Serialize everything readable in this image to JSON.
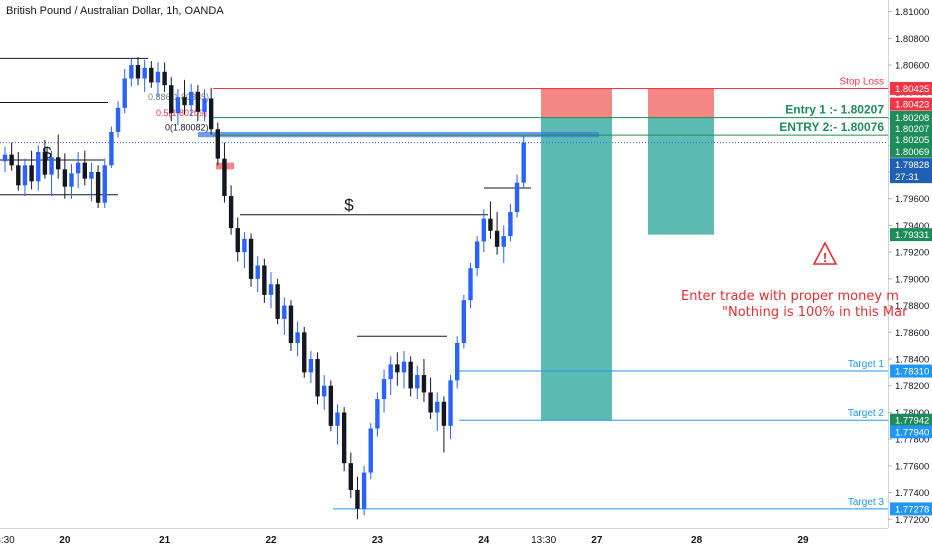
{
  "header": {
    "title": "British Pound / Australian Dollar, 1h, OANDA"
  },
  "chart_data": {
    "type": "candlestick",
    "symbol": "British Pound / Australian Dollar",
    "timeframe": "1h",
    "ylim": [
      1.7715,
      1.8105
    ],
    "price_ticks": [
      "1.81000",
      "1.80800",
      "1.80600",
      "1.80400",
      "1.80200",
      "1.80000",
      "1.79800",
      "1.79600",
      "1.79400",
      "1.79200",
      "1.79000",
      "1.78800",
      "1.78600",
      "1.78400",
      "1.78200",
      "1.78000",
      "1.77800",
      "1.77600",
      "1.77400",
      "1.77200"
    ],
    "time_labels": [
      {
        "label": "3:30",
        "idx": 0
      },
      {
        "label": "20",
        "idx": 9
      },
      {
        "label": "21",
        "idx": 24
      },
      {
        "label": "22",
        "idx": 40
      },
      {
        "label": "23",
        "idx": 56
      },
      {
        "label": "24",
        "idx": 72
      },
      {
        "label": "13:30",
        "idx": 81
      },
      {
        "label": "27",
        "idx": 89
      },
      {
        "label": "28",
        "idx": 104
      },
      {
        "label": "29",
        "idx": 120
      }
    ],
    "candles": [
      [
        1.7988,
        1.7999,
        1.798,
        1.7993
      ],
      [
        1.7993,
        1.8002,
        1.7981,
        1.7985
      ],
      [
        1.7985,
        1.7995,
        1.7966,
        1.797
      ],
      [
        1.797,
        1.799,
        1.7962,
        1.7985
      ],
      [
        1.7985,
        1.7996,
        1.7967,
        1.7973
      ],
      [
        1.7973,
        1.8,
        1.7966,
        1.7995
      ],
      [
        1.7995,
        1.8004,
        1.7975,
        1.7978
      ],
      [
        1.7978,
        1.7996,
        1.7962,
        1.7991
      ],
      [
        1.7991,
        1.8008,
        1.7975,
        1.7982
      ],
      [
        1.7982,
        1.7994,
        1.796,
        1.7969
      ],
      [
        1.7969,
        1.7986,
        1.796,
        1.7979
      ],
      [
        1.7979,
        1.7995,
        1.7968,
        1.7987
      ],
      [
        1.7987,
        1.7996,
        1.797,
        1.7975
      ],
      [
        1.7975,
        1.7987,
        1.7958,
        1.798
      ],
      [
        1.798,
        1.7985,
        1.7953,
        1.7957
      ],
      [
        1.7957,
        1.799,
        1.7953,
        1.7985
      ],
      [
        1.7985,
        1.8014,
        1.7983,
        1.801
      ],
      [
        1.801,
        1.8033,
        1.8006,
        1.8028
      ],
      [
        1.8028,
        1.8057,
        1.8024,
        1.805
      ],
      [
        1.805,
        1.8065,
        1.8044,
        1.806
      ],
      [
        1.806,
        1.8066,
        1.8045,
        1.805
      ],
      [
        1.805,
        1.8064,
        1.804,
        1.8058
      ],
      [
        1.8058,
        1.8063,
        1.8043,
        1.8047
      ],
      [
        1.8047,
        1.8062,
        1.8036,
        1.8055
      ],
      [
        1.8055,
        1.8062,
        1.804,
        1.8045
      ],
      [
        1.8045,
        1.8051,
        1.8018,
        1.8024
      ],
      [
        1.8024,
        1.8042,
        1.8015,
        1.8036
      ],
      [
        1.8036,
        1.8049,
        1.8023,
        1.803
      ],
      [
        1.803,
        1.8046,
        1.8022,
        1.804
      ],
      [
        1.804,
        1.8045,
        1.8018,
        1.8025
      ],
      [
        1.8025,
        1.8042,
        1.8018,
        1.8035
      ],
      [
        1.8035,
        1.8043,
        1.8008,
        1.8012
      ],
      [
        1.8012,
        1.8017,
        1.7985,
        1.799
      ],
      [
        1.799,
        1.8002,
        1.7957,
        1.7962
      ],
      [
        1.7962,
        1.797,
        1.7933,
        1.7938
      ],
      [
        1.7938,
        1.7946,
        1.7913,
        1.792
      ],
      [
        1.792,
        1.7935,
        1.7908,
        1.793
      ],
      [
        1.793,
        1.7934,
        1.7894,
        1.79
      ],
      [
        1.79,
        1.7917,
        1.789,
        1.791
      ],
      [
        1.791,
        1.7915,
        1.7882,
        1.7888
      ],
      [
        1.7888,
        1.7905,
        1.7878,
        1.7896
      ],
      [
        1.7896,
        1.79,
        1.7866,
        1.787
      ],
      [
        1.787,
        1.7886,
        1.7858,
        1.788
      ],
      [
        1.788,
        1.7884,
        1.7846,
        1.7852
      ],
      [
        1.7852,
        1.7868,
        1.7842,
        1.786
      ],
      [
        1.786,
        1.7864,
        1.7826,
        1.783
      ],
      [
        1.783,
        1.7846,
        1.7822,
        1.784
      ],
      [
        1.784,
        1.7845,
        1.7806,
        1.7812
      ],
      [
        1.7812,
        1.7828,
        1.7802,
        1.782
      ],
      [
        1.782,
        1.7824,
        1.7786,
        1.779
      ],
      [
        1.779,
        1.7806,
        1.7776,
        1.78
      ],
      [
        1.78,
        1.7804,
        1.7756,
        1.7762
      ],
      [
        1.7762,
        1.777,
        1.7736,
        1.7742
      ],
      [
        1.7742,
        1.7752,
        1.772,
        1.7728
      ],
      [
        1.7728,
        1.776,
        1.7723,
        1.7755
      ],
      [
        1.7755,
        1.7792,
        1.775,
        1.7788
      ],
      [
        1.7788,
        1.7815,
        1.7782,
        1.781
      ],
      [
        1.781,
        1.7832,
        1.78,
        1.7825
      ],
      [
        1.7825,
        1.7842,
        1.7813,
        1.7836
      ],
      [
        1.7836,
        1.7845,
        1.782,
        1.783
      ],
      [
        1.783,
        1.7846,
        1.7818,
        1.7838
      ],
      [
        1.7838,
        1.7842,
        1.7812,
        1.7818
      ],
      [
        1.7818,
        1.7835,
        1.781,
        1.7828
      ],
      [
        1.7828,
        1.784,
        1.7808,
        1.7815
      ],
      [
        1.7815,
        1.7826,
        1.7795,
        1.78
      ],
      [
        1.78,
        1.7815,
        1.7786,
        1.7808
      ],
      [
        1.7808,
        1.7812,
        1.777,
        1.779
      ],
      [
        1.779,
        1.7828,
        1.778,
        1.7824
      ],
      [
        1.7824,
        1.7857,
        1.7818,
        1.7852
      ],
      [
        1.7852,
        1.7888,
        1.7848,
        1.7884
      ],
      [
        1.7884,
        1.7912,
        1.7878,
        1.7908
      ],
      [
        1.7908,
        1.7932,
        1.7902,
        1.7928
      ],
      [
        1.7928,
        1.7952,
        1.792,
        1.7945
      ],
      [
        1.7945,
        1.7958,
        1.793,
        1.7936
      ],
      [
        1.7936,
        1.795,
        1.7918,
        1.7924
      ],
      [
        1.7924,
        1.794,
        1.7912,
        1.7932
      ],
      [
        1.7932,
        1.7956,
        1.7928,
        1.795
      ],
      [
        1.795,
        1.7978,
        1.7946,
        1.7972
      ],
      [
        1.7972,
        1.8007,
        1.7968,
        1.8002
      ]
    ],
    "horizontal_lines": [
      {
        "price": 1.80425,
        "label": "Stop Loss",
        "color": "#f23645",
        "from_idx": 31
      },
      {
        "price": 1.80207,
        "label": "Entry 1 :- 1.80207",
        "color": "#1e8c5a",
        "from_idx": 31
      },
      {
        "price": 1.80076,
        "label": "ENTRY 2:- 1.80076",
        "color": "#1e8c5a",
        "from_idx": 31
      },
      {
        "price": 1.7831,
        "label": "Target 1",
        "color": "#2196f3",
        "from_idx": 68
      },
      {
        "price": 1.77942,
        "label": "Target 2",
        "color": "#2196f3",
        "from_idx": 68
      },
      {
        "price": 1.77278,
        "label": "Target 3",
        "color": "#2196f3",
        "from_idx": 49
      }
    ],
    "fib_labels": [
      "0.886(1.80385)",
      "0.5(1.80209)",
      "0(1.80082)"
    ],
    "liquidity_marks": [
      "$",
      "$"
    ],
    "price_labels": [
      {
        "text": "1.80425",
        "bg": "#f23645",
        "price": 1.80425
      },
      {
        "text": "1.80423",
        "bg": "#f23645",
        "price": 1.80308
      },
      {
        "text": "1.80208",
        "bg": "#1e8c5a",
        "price": 1.80208
      },
      {
        "text": "1.80207",
        "bg": "#1e8c5a",
        "price": 1.80125
      },
      {
        "text": "1.80205",
        "bg": "#1e8c5a",
        "price": 1.80042
      },
      {
        "text": "1.80069",
        "bg": "#1e8c5a",
        "price": 1.79955
      },
      {
        "text": "1.79828",
        "bg": "#1e5fb4",
        "price": 1.79855
      },
      {
        "text": "27:31",
        "bg": "#1e5fb4",
        "price": 1.79765
      },
      {
        "text": "1.79331",
        "bg": "#1e8c5a",
        "price": 1.79331
      },
      {
        "text": "1.78310",
        "bg": "#2196f3",
        "price": 1.7831
      },
      {
        "text": "1.77942",
        "bg": "#1e8c5a",
        "price": 1.77942
      },
      {
        "text": "1.77940",
        "bg": "#2196f3",
        "price": 1.77855
      },
      {
        "text": "1.77278",
        "bg": "#2196f3",
        "price": 1.77278
      }
    ],
    "annotations": {
      "warning_line1": "Enter trade with proper money m",
      "warning_line2": "\"Nothing is 100% in this Mar"
    },
    "colors": {
      "up": "#2962ff",
      "down": "#131722",
      "tp_zone": "#26a69a",
      "sl_zone": "#ef5350"
    }
  }
}
